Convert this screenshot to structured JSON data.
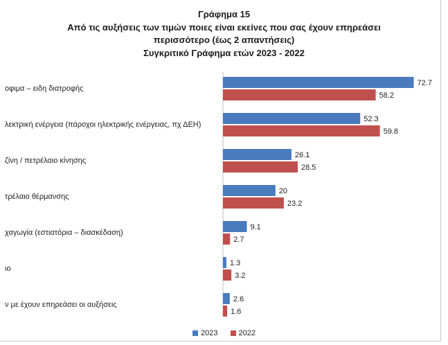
{
  "title": {
    "line1": "Γράφημα 15",
    "line2": "Από τις αυξήσεις των τιμών ποιες είναι εκείνες που σας έχουν επηρεάσει",
    "line3": "περισσότερο (έως 2 απαντήσεις)",
    "line4": "Συγκριτικό Γράφημα ετών 2023 - 2022"
  },
  "colors": {
    "series_2023": "#4a7bbd",
    "series_2022": "#c0504d"
  },
  "chart_data": {
    "type": "bar",
    "orientation": "horizontal",
    "title": "Γράφημα 15 — Από τις αυξήσεις των τιμών ποιες είναι εκείνες που σας έχουν επηρεάσει περισσότερο (έως 2 απαντήσεις) — Συγκριτικό Γράφημα ετών 2023 - 2022",
    "categories": [
      "οφιμα – ειδη διατροφής",
      "λεκτρική ενέργεια (πάροχοι ηλεκτρικής ενέργειας, πχ ΔΕΗ)",
      "ζίνη / πετρέλαιο κίνησης",
      "τρέλαιο θέρμανσης",
      "χαγωγία (εστιατόρια – διασκέδαση)",
      "ιο",
      "ν με έχουν επηρεάσει οι αυξήσεις"
    ],
    "series": [
      {
        "name": "2023",
        "values": [
          72.7,
          52.3,
          26.1,
          20,
          9.1,
          1.3,
          2.6
        ]
      },
      {
        "name": "2022",
        "values": [
          58.2,
          59.8,
          28.5,
          23.2,
          2.7,
          3.2,
          1.6
        ]
      }
    ],
    "value_labels_2023": [
      "72.7",
      "52.3",
      "26.1",
      "20",
      "9.1",
      "1.3",
      "2.6"
    ],
    "value_labels_2022": [
      "58.2",
      "59.8",
      "28.5",
      "23.2",
      "2.7",
      "3.2",
      "1.6"
    ],
    "xlim": [
      0,
      80
    ],
    "legend": [
      "2023",
      "2022"
    ],
    "legend_position": "bottom",
    "grid": false
  }
}
